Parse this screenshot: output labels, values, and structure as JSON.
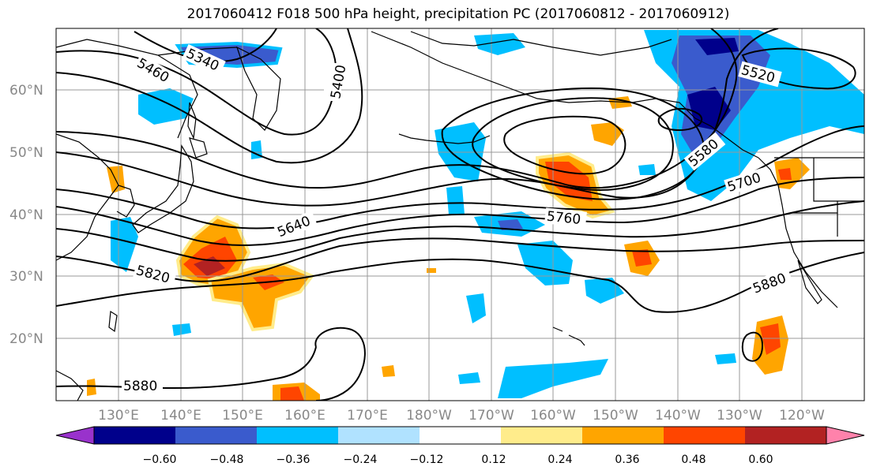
{
  "title": "2017060412 F018 500 hPa height, precipitation PC (2017060812 - 2017060912)",
  "lat_labels": [
    "60°N",
    "50°N",
    "40°N",
    "30°N",
    "20°N"
  ],
  "lon_labels": [
    "130°E",
    "140°E",
    "150°E",
    "160°E",
    "170°E",
    "180°W",
    "170°W",
    "160°W",
    "150°W",
    "140°W",
    "130°W",
    "120°W"
  ],
  "contour_labels": [
    "5340",
    "5400",
    "5460",
    "5520",
    "5580",
    "5640",
    "5700",
    "5760",
    "5820",
    "5880"
  ],
  "colorbar": {
    "colors": [
      "#9932cc",
      "#00008b",
      "#3a5bcd",
      "#00bfff",
      "#b0e2ff",
      "#ffffff",
      "#ffec8b",
      "#ffa500",
      "#ff4500",
      "#b22222",
      "#ff82ab"
    ],
    "tick_labels": [
      "−0.60",
      "−0.48",
      "−0.36",
      "−0.24",
      "−0.12",
      "0.12",
      "0.24",
      "0.36",
      "0.48",
      "0.60"
    ]
  }
}
